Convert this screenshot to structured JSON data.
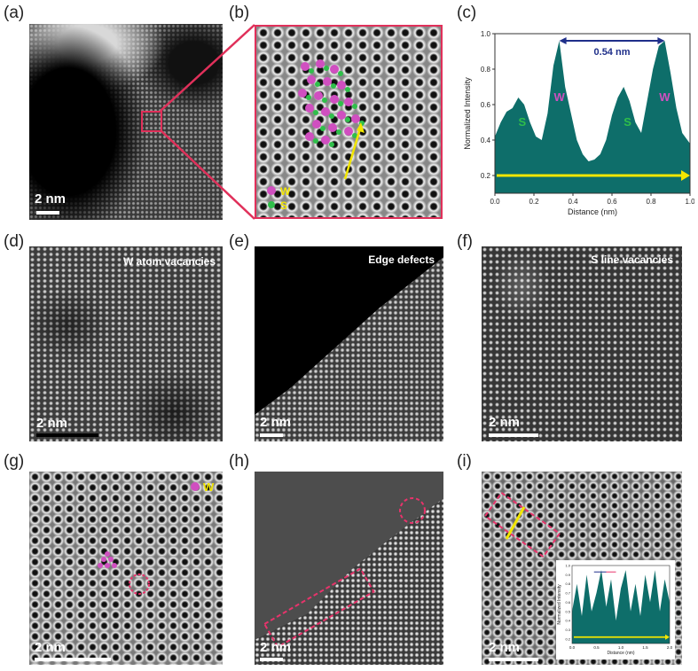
{
  "panels": {
    "a": {
      "label": "(a)",
      "scale": "2 nm"
    },
    "b": {
      "label": "(b)",
      "legend_w": "W",
      "legend_s": "S"
    },
    "c": {
      "label": "(c)"
    },
    "d": {
      "label": "(d)",
      "caption": "W atom vacancies",
      "scale": "2 nm"
    },
    "e": {
      "label": "(e)",
      "caption": "Edge defects",
      "scale": "2 nm"
    },
    "f": {
      "label": "(f)",
      "caption": "S line vacancies",
      "scale": "2 nm"
    },
    "g": {
      "label": "(g)",
      "legend_w": "W",
      "scale": "2 nm"
    },
    "h": {
      "label": "(h)",
      "scale": "2 nm"
    },
    "i": {
      "label": "(i)",
      "scale": "2 nm"
    }
  },
  "colors": {
    "fill": "#0e6e6a",
    "arrow": "#f2e600",
    "bracket": "#1f2f8a",
    "w_atom": "#d04fc0",
    "s_atom": "#2fbf4a",
    "defect": "#e8336b"
  },
  "chart_data": [
    {
      "type": "area",
      "panel": "c",
      "title": "",
      "xlabel": "Distance (nm)",
      "ylabel": "Normalized Intensity",
      "xlim": [
        0,
        1.0
      ],
      "ylim": [
        0.1,
        1.0
      ],
      "xticks": [
        "0.0",
        "0.2",
        "0.4",
        "0.6",
        "0.8",
        "1.0"
      ],
      "yticks": [
        "0.2",
        "0.4",
        "0.6",
        "0.8",
        "1.0"
      ],
      "x": [
        0,
        0.03,
        0.06,
        0.09,
        0.12,
        0.15,
        0.18,
        0.21,
        0.24,
        0.27,
        0.3,
        0.33,
        0.36,
        0.39,
        0.42,
        0.45,
        0.48,
        0.51,
        0.54,
        0.57,
        0.6,
        0.63,
        0.66,
        0.69,
        0.72,
        0.75,
        0.78,
        0.81,
        0.84,
        0.87,
        0.9,
        0.93,
        0.96,
        1.0
      ],
      "values": [
        0.42,
        0.5,
        0.56,
        0.58,
        0.64,
        0.6,
        0.5,
        0.42,
        0.4,
        0.55,
        0.82,
        0.96,
        0.7,
        0.55,
        0.4,
        0.32,
        0.28,
        0.29,
        0.32,
        0.4,
        0.54,
        0.64,
        0.7,
        0.62,
        0.5,
        0.44,
        0.62,
        0.8,
        0.93,
        0.96,
        0.78,
        0.58,
        0.44,
        0.38
      ],
      "annotations": [
        "0.54 nm",
        "S",
        "W",
        "S",
        "W"
      ]
    },
    {
      "type": "area",
      "panel": "i-inset",
      "xlabel": "Distance (nm)",
      "ylabel": "Normalized Intensity",
      "xticks": [
        "0.0",
        "0.5",
        "1.0",
        "1.5",
        "2.0"
      ],
      "yticks": [
        "0.2",
        "0.3",
        "0.4",
        "0.5",
        "0.6",
        "0.7",
        "0.8",
        "0.9",
        "1.0"
      ],
      "xlim": [
        0,
        2.0
      ],
      "ylim": [
        0.15,
        1.0
      ],
      "x": [
        0,
        0.1,
        0.2,
        0.3,
        0.4,
        0.5,
        0.6,
        0.7,
        0.8,
        0.9,
        1.0,
        1.1,
        1.2,
        1.3,
        1.4,
        1.5,
        1.6,
        1.7,
        1.8,
        1.9,
        2.0
      ],
      "values": [
        0.5,
        0.8,
        0.45,
        0.9,
        0.5,
        0.7,
        0.95,
        0.55,
        0.85,
        0.4,
        0.75,
        0.95,
        0.5,
        0.8,
        0.45,
        0.9,
        0.6,
        0.95,
        0.5,
        0.85,
        0.6
      ]
    }
  ]
}
